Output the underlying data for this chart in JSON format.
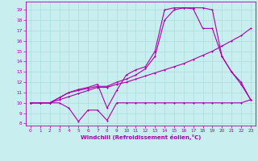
{
  "xlabel": "Windchill (Refroidissement éolien,°C)",
  "background_color": "#c8eef0",
  "grid_color": "#aadddd",
  "line_color": "#aa00aa",
  "xlim": [
    -0.5,
    23.5
  ],
  "ylim": [
    7.8,
    19.8
  ],
  "xticks": [
    0,
    1,
    2,
    3,
    4,
    5,
    6,
    7,
    8,
    9,
    10,
    11,
    12,
    13,
    14,
    15,
    16,
    17,
    18,
    19,
    20,
    21,
    22,
    23
  ],
  "yticks": [
    8,
    9,
    10,
    11,
    12,
    13,
    14,
    15,
    16,
    17,
    18,
    19
  ],
  "series": [
    {
      "x": [
        0,
        1,
        2,
        3,
        4,
        5,
        6,
        7,
        8,
        9,
        10,
        11,
        12,
        13,
        14,
        15,
        16,
        17,
        18,
        19,
        20,
        21,
        22,
        23
      ],
      "y": [
        10,
        10,
        10,
        10,
        9.5,
        8.2,
        9.3,
        9.3,
        8.3,
        10,
        10,
        10,
        10,
        10,
        10,
        10,
        10,
        10,
        10,
        10,
        10,
        10,
        10,
        10.3
      ]
    },
    {
      "x": [
        0,
        1,
        2,
        3,
        4,
        5,
        6,
        7,
        8,
        9,
        10,
        11,
        12,
        13,
        14,
        15,
        16,
        17,
        18,
        19,
        20,
        21,
        22,
        23
      ],
      "y": [
        10,
        10,
        10,
        10.3,
        10.6,
        10.9,
        11.2,
        11.5,
        11.5,
        11.8,
        12.0,
        12.3,
        12.6,
        12.9,
        13.2,
        13.5,
        13.8,
        14.2,
        14.6,
        15.0,
        15.5,
        16.0,
        16.5,
        17.2
      ]
    },
    {
      "x": [
        0,
        1,
        2,
        3,
        4,
        5,
        6,
        7,
        8,
        9,
        10,
        11,
        12,
        13,
        14,
        15,
        16,
        17,
        18,
        19,
        20,
        21,
        22,
        23
      ],
      "y": [
        10,
        10,
        10,
        10.5,
        11,
        11.2,
        11.4,
        11.6,
        11.6,
        12,
        12.3,
        12.7,
        13.3,
        14.5,
        18.0,
        19.0,
        19.2,
        19.1,
        17.2,
        17.2,
        14.5,
        13.0,
        11.8,
        10.3
      ]
    },
    {
      "x": [
        0,
        1,
        2,
        3,
        4,
        5,
        6,
        7,
        8,
        9,
        10,
        11,
        12,
        13,
        14,
        15,
        16,
        17,
        18,
        19,
        20,
        21,
        22,
        23
      ],
      "y": [
        10,
        10,
        10,
        10.5,
        11,
        11.3,
        11.5,
        11.8,
        9.5,
        11.2,
        12.7,
        13.2,
        13.5,
        15,
        19,
        19.2,
        19.2,
        19.2,
        19.2,
        19.0,
        14.5,
        13.0,
        12.0,
        10.3
      ]
    }
  ]
}
